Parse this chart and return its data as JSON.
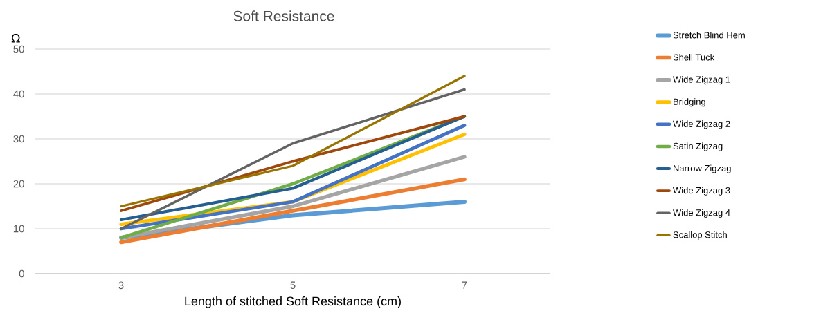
{
  "chart_data": {
    "type": "line",
    "title": "Soft Resistance",
    "xlabel": "Length of stitched Soft Resistance (cm)",
    "ylabel": "Ω",
    "categories": [
      "3",
      "5",
      "7"
    ],
    "series": [
      {
        "name": "Stretch Blind Hem",
        "color": "#5b9bd5",
        "values": [
          8,
          13,
          16
        ]
      },
      {
        "name": "Shell Tuck",
        "color": "#ed7d31",
        "values": [
          7,
          14,
          21
        ]
      },
      {
        "name": "Wide Zigzag 1",
        "color": "#a5a5a5",
        "values": [
          8,
          15,
          26
        ]
      },
      {
        "name": "Bridging",
        "color": "#ffc000",
        "values": [
          11,
          16,
          31
        ]
      },
      {
        "name": "Wide Zigzag 2",
        "color": "#4472c4",
        "values": [
          10,
          16,
          33
        ]
      },
      {
        "name": "Satin Zigzag",
        "color": "#70ad47",
        "values": [
          8,
          20,
          35
        ]
      },
      {
        "name": "Narrow Zigzag",
        "color": "#255e91",
        "values": [
          12,
          19,
          35
        ]
      },
      {
        "name": "Wide Zigzag 3",
        "color": "#9e480e",
        "values": [
          14,
          25,
          35
        ]
      },
      {
        "name": "Wide Zigzag 4",
        "color": "#636363",
        "values": [
          10,
          29,
          41
        ]
      },
      {
        "name": "Scallop Stitch",
        "color": "#997300",
        "values": [
          15,
          24,
          44
        ]
      }
    ],
    "ylim": [
      0,
      50
    ],
    "yticks": [
      0,
      10,
      20,
      30,
      40,
      50
    ],
    "grid": "y",
    "legend": "right"
  }
}
